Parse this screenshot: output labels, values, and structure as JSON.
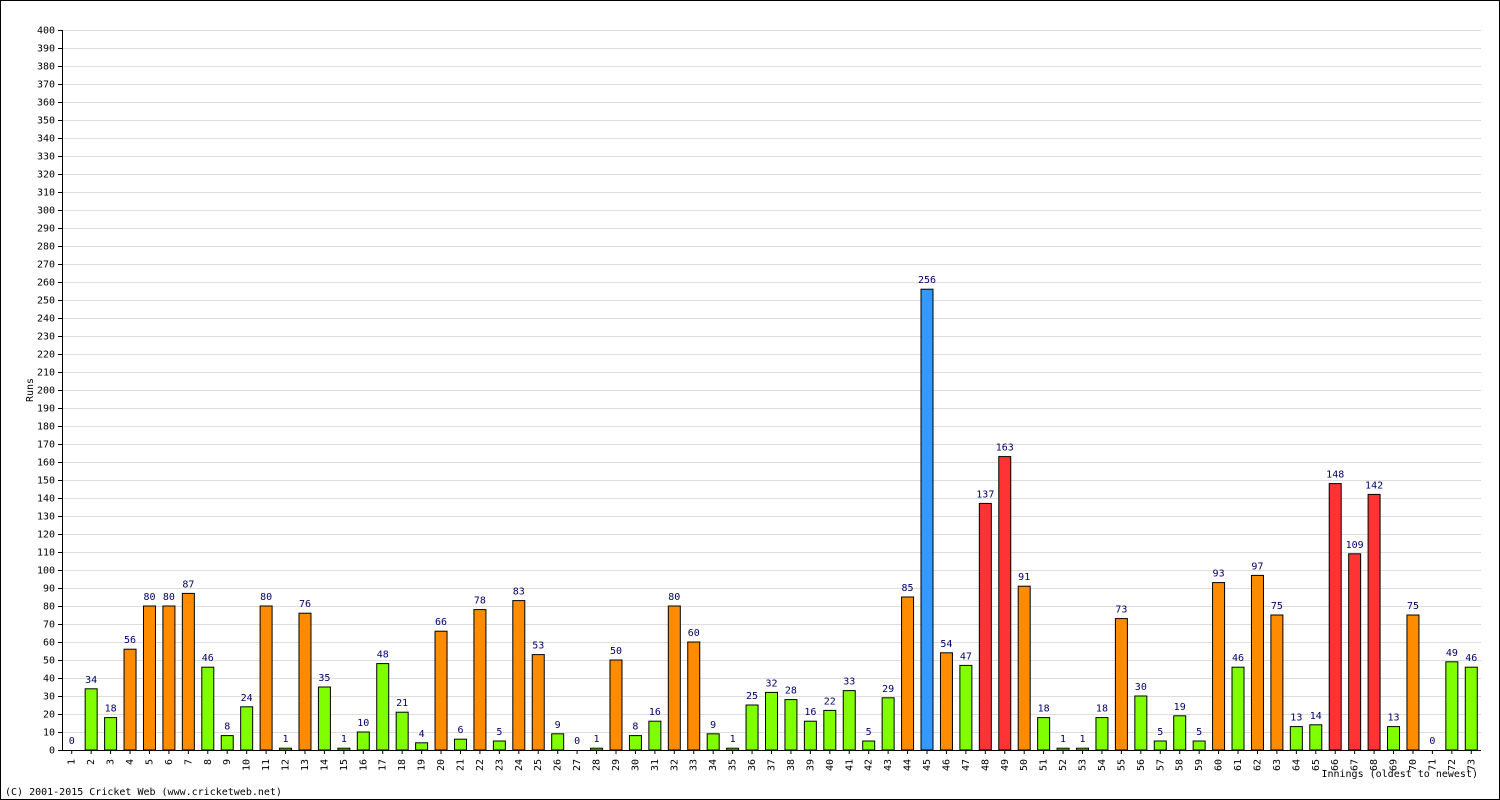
{
  "chart_data": {
    "type": "bar",
    "y_label": "Runs",
    "x_label": "Innings (oldest to newest)",
    "footer": "(C) 2001-2015 Cricket Web (www.cricketweb.net)",
    "categories": [
      "1",
      "2",
      "3",
      "4",
      "5",
      "6",
      "7",
      "8",
      "9",
      "10",
      "11",
      "12",
      "13",
      "14",
      "15",
      "16",
      "17",
      "18",
      "19",
      "20",
      "21",
      "22",
      "23",
      "24",
      "25",
      "26",
      "27",
      "28",
      "29",
      "30",
      "31",
      "32",
      "33",
      "34",
      "35",
      "36",
      "37",
      "38",
      "39",
      "40",
      "41",
      "42",
      "43",
      "44",
      "45",
      "46",
      "47",
      "48",
      "49",
      "50",
      "51",
      "52",
      "53",
      "54",
      "55",
      "56",
      "57",
      "58",
      "59",
      "60",
      "61",
      "62",
      "63",
      "64",
      "65",
      "66",
      "67",
      "68",
      "69",
      "70",
      "71",
      "72",
      "73"
    ],
    "values": [
      0,
      34,
      18,
      56,
      80,
      80,
      87,
      46,
      8,
      24,
      80,
      1,
      76,
      35,
      1,
      10,
      48,
      21,
      4,
      66,
      6,
      78,
      5,
      83,
      53,
      9,
      0,
      1,
      50,
      8,
      16,
      80,
      60,
      9,
      1,
      25,
      32,
      28,
      16,
      22,
      33,
      5,
      29,
      85,
      256,
      54,
      47,
      137,
      163,
      91,
      18,
      1,
      1,
      18,
      73,
      30,
      5,
      19,
      5,
      93,
      46,
      97,
      75,
      13,
      14,
      148,
      109,
      142,
      13,
      75,
      0,
      49,
      46
    ],
    "colors": [
      "#7fff00",
      "#7fff00",
      "#7fff00",
      "#ff8c00",
      "#ff8c00",
      "#ff8c00",
      "#ff8c00",
      "#7fff00",
      "#7fff00",
      "#7fff00",
      "#ff8c00",
      "#7fff00",
      "#ff8c00",
      "#7fff00",
      "#7fff00",
      "#7fff00",
      "#7fff00",
      "#7fff00",
      "#7fff00",
      "#ff8c00",
      "#7fff00",
      "#ff8c00",
      "#7fff00",
      "#ff8c00",
      "#ff8c00",
      "#7fff00",
      "#7fff00",
      "#7fff00",
      "#ff8c00",
      "#7fff00",
      "#7fff00",
      "#ff8c00",
      "#ff8c00",
      "#7fff00",
      "#7fff00",
      "#7fff00",
      "#7fff00",
      "#7fff00",
      "#7fff00",
      "#7fff00",
      "#7fff00",
      "#7fff00",
      "#7fff00",
      "#ff8c00",
      "#3399ff",
      "#ff8c00",
      "#7fff00",
      "#ff3333",
      "#ff3333",
      "#ff8c00",
      "#7fff00",
      "#7fff00",
      "#7fff00",
      "#7fff00",
      "#ff8c00",
      "#7fff00",
      "#7fff00",
      "#7fff00",
      "#7fff00",
      "#ff8c00",
      "#7fff00",
      "#ff8c00",
      "#ff8c00",
      "#7fff00",
      "#7fff00",
      "#ff3333",
      "#ff3333",
      "#ff3333",
      "#7fff00",
      "#ff8c00",
      "#7fff00",
      "#7fff00",
      "#7fff00"
    ],
    "ylim": [
      0,
      400
    ],
    "yticks": [
      0,
      10,
      20,
      30,
      40,
      50,
      60,
      70,
      80,
      90,
      100,
      110,
      120,
      130,
      140,
      150,
      160,
      170,
      180,
      190,
      200,
      210,
      220,
      230,
      240,
      250,
      260,
      270,
      280,
      290,
      300,
      310,
      320,
      330,
      340,
      350,
      360,
      370,
      380,
      390,
      400
    ],
    "grid": true
  }
}
